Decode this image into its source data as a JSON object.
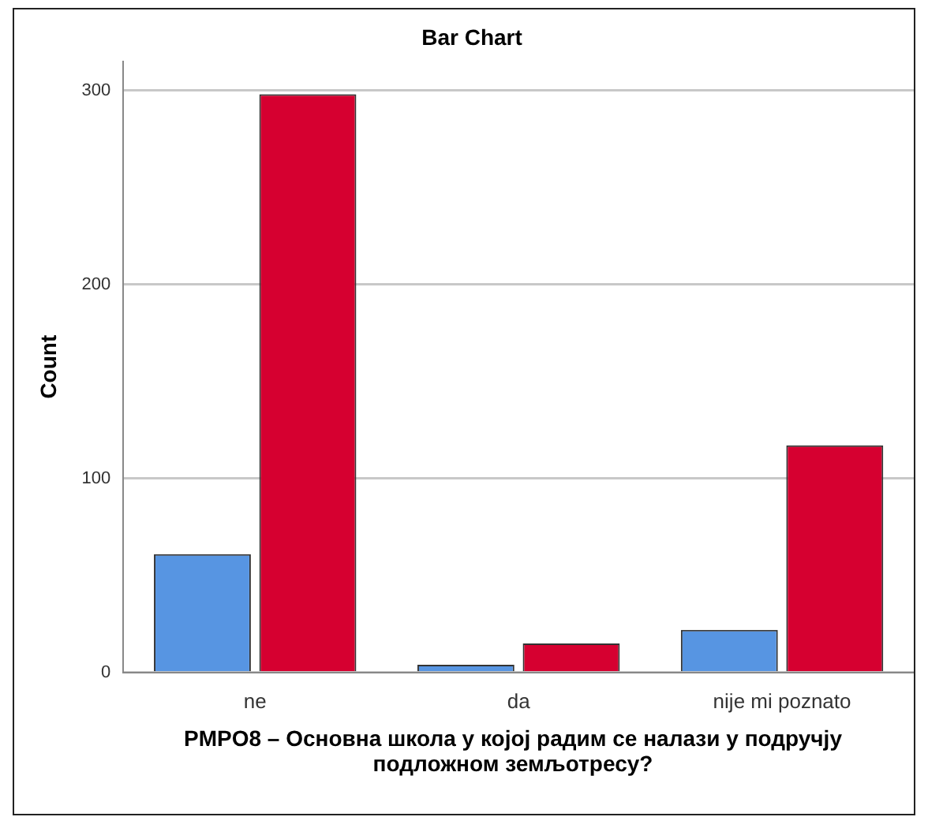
{
  "chart_data": {
    "type": "bar",
    "title": "Bar Chart",
    "xlabel": "PMPO8 – Основна школа у којој радим се налази у подручју подложном земљотресу?",
    "ylabel": "Count",
    "categories": [
      "ne",
      "da",
      "nije mi poznato"
    ],
    "series": [
      {
        "color": "#5795e2",
        "values": [
          61,
          4,
          22
        ]
      },
      {
        "color": "#d60030",
        "values": [
          298,
          15,
          117
        ]
      }
    ],
    "ylim": [
      0,
      315
    ],
    "yticks": [
      0,
      100,
      200,
      300
    ],
    "grid": "y",
    "legend": false
  }
}
